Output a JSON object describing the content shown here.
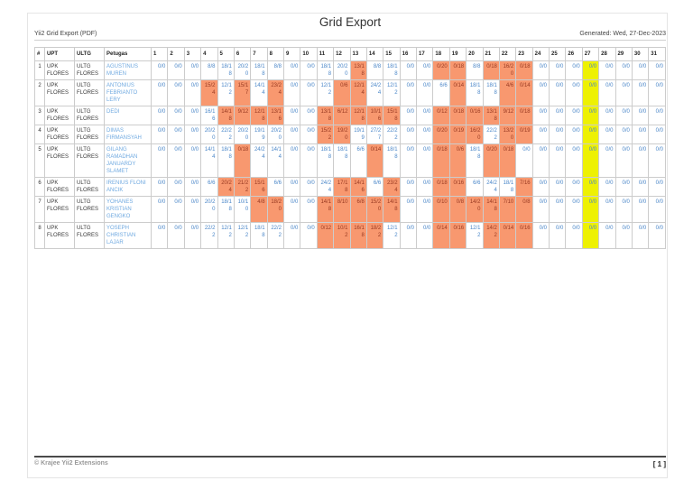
{
  "page": {
    "subtitle": "Yii2 Grid Export (PDF)",
    "title": "Grid Export",
    "generated": "Generated: Wed, 27-Dec-2023",
    "footer_left": "© Krajee Yii2 Extensions",
    "footer_right": "[ 1 ]"
  },
  "colors": {
    "orange_highlight": "#f8986f",
    "yellow_highlight": "#eef102",
    "value_text": "#4a86c8",
    "orange_cell_text": "#993a22",
    "link_text": "#6fa9e0",
    "border": "#cccccc"
  },
  "table": {
    "fixed_columns": [
      "#",
      "UPT",
      "ULTG",
      "Petugas"
    ],
    "day_columns": [
      "1",
      "2",
      "3",
      "4",
      "5",
      "6",
      "7",
      "8",
      "9",
      "10",
      "11",
      "12",
      "13",
      "14",
      "15",
      "16",
      "17",
      "18",
      "19",
      "20",
      "21",
      "22",
      "23",
      "24",
      "25",
      "26",
      "27",
      "28",
      "29",
      "30",
      "31"
    ],
    "yellow_day": 27,
    "rows": [
      {
        "num": "1",
        "upt": "UPK FLORES",
        "ultg": "ULTG FLORES",
        "petugas": "AGUSTINUS MUREN",
        "days": [
          "0/0",
          "0/0",
          "0/0",
          "8/8",
          "18/18",
          "20/20",
          "18/18",
          "8/8",
          "0/0",
          "0/0",
          "18/18",
          "20/20",
          "13/18",
          "8/8",
          "18/18",
          "0/0",
          "0/0",
          "0/20",
          "0/18",
          "8/8",
          "0/18",
          "16/20",
          "0/18",
          "0/0",
          "0/0",
          "0/0",
          "0/0",
          "0/0",
          "0/0",
          "0/0",
          "0/0"
        ],
        "orange": [
          13,
          18,
          19,
          21,
          22,
          23
        ]
      },
      {
        "num": "2",
        "upt": "UPK FLORES",
        "ultg": "ULTG FLORES",
        "petugas": "ANTONIUS FEBRIANTO LERY",
        "days": [
          "0/0",
          "0/0",
          "0/0",
          "15/24",
          "12/12",
          "15/17",
          "14/14",
          "23/24",
          "0/0",
          "0/0",
          "12/12",
          "0/6",
          "12/14",
          "24/24",
          "12/12",
          "0/0",
          "0/0",
          "6/6",
          "0/14",
          "18/18",
          "18/18",
          "4/6",
          "0/14",
          "0/0",
          "0/0",
          "0/0",
          "0/0",
          "0/0",
          "0/0",
          "0/0",
          "0/0"
        ],
        "orange": [
          4,
          6,
          8,
          12,
          13,
          19,
          22,
          23
        ]
      },
      {
        "num": "3",
        "upt": "UPK FLORES",
        "ultg": "ULTG FLORES",
        "petugas": "DEDI",
        "days": [
          "0/0",
          "0/0",
          "0/0",
          "16/16",
          "14/18",
          "9/12",
          "12/18",
          "13/16",
          "0/0",
          "0/0",
          "13/18",
          "6/12",
          "12/18",
          "10/16",
          "15/18",
          "0/0",
          "0/0",
          "0/12",
          "0/18",
          "0/16",
          "13/18",
          "9/12",
          "0/18",
          "0/0",
          "0/0",
          "0/0",
          "0/0",
          "0/0",
          "0/0",
          "0/0",
          "0/0"
        ],
        "orange": [
          5,
          6,
          7,
          8,
          11,
          12,
          13,
          14,
          15,
          18,
          19,
          20,
          21,
          22,
          23
        ]
      },
      {
        "num": "4",
        "upt": "UPK FLORES",
        "ultg": "ULTG FLORES",
        "petugas": "DIMAS FIRMANSYAH",
        "days": [
          "0/0",
          "0/0",
          "0/0",
          "20/20",
          "22/22",
          "20/20",
          "19/19",
          "20/20",
          "0/0",
          "0/0",
          "15/22",
          "19/20",
          "19/19",
          "27/27",
          "22/22",
          "0/0",
          "0/0",
          "0/20",
          "0/19",
          "16/20",
          "22/22",
          "13/20",
          "0/19",
          "0/0",
          "0/0",
          "0/0",
          "0/0",
          "0/0",
          "0/0",
          "0/0",
          "0/0"
        ],
        "orange": [
          11,
          12,
          18,
          19,
          20,
          22,
          23
        ]
      },
      {
        "num": "5",
        "upt": "UPK FLORES",
        "ultg": "ULTG FLORES",
        "petugas": "GILANG RAMADHAN JANUARDY SLAMET",
        "days": [
          "0/0",
          "0/0",
          "0/0",
          "14/14",
          "18/18",
          "0/18",
          "24/24",
          "14/14",
          "0/0",
          "0/0",
          "18/18",
          "18/18",
          "6/6",
          "0/14",
          "18/18",
          "0/0",
          "0/0",
          "0/18",
          "0/6",
          "18/18",
          "0/20",
          "0/18",
          "0/0",
          "0/0",
          "0/0",
          "0/0",
          "0/0",
          "0/0",
          "0/0",
          "0/0",
          "0/0"
        ],
        "orange": [
          6,
          14,
          18,
          19,
          21,
          22
        ]
      },
      {
        "num": "6",
        "upt": "UPK FLORES",
        "ultg": "ULTG FLORES",
        "petugas": "IRENIUS FLONI ANCIK",
        "days": [
          "0/0",
          "0/0",
          "0/0",
          "6/6",
          "20/24",
          "21/22",
          "15/16",
          "6/6",
          "0/0",
          "0/0",
          "24/24",
          "17/18",
          "14/16",
          "6/6",
          "23/24",
          "0/0",
          "0/0",
          "0/18",
          "0/16",
          "6/6",
          "24/24",
          "18/18",
          "7/16",
          "0/0",
          "0/0",
          "0/0",
          "0/0",
          "0/0",
          "0/0",
          "0/0",
          "0/0"
        ],
        "orange": [
          5,
          6,
          7,
          12,
          13,
          15,
          18,
          19,
          23
        ]
      },
      {
        "num": "7",
        "upt": "UPK FLORES",
        "ultg": "ULTG FLORES",
        "petugas": "YOHANES KRISTIAN GENGKO",
        "days": [
          "0/0",
          "0/0",
          "0/0",
          "20/20",
          "18/18",
          "10/10",
          "4/8",
          "18/20",
          "0/0",
          "0/0",
          "14/18",
          "8/10",
          "6/8",
          "15/20",
          "14/18",
          "0/0",
          "0/0",
          "0/10",
          "0/8",
          "14/20",
          "14/18",
          "7/10",
          "0/8",
          "0/0",
          "0/0",
          "0/0",
          "0/0",
          "0/0",
          "0/0",
          "0/0",
          "0/0"
        ],
        "orange": [
          7,
          8,
          11,
          12,
          13,
          14,
          15,
          18,
          19,
          20,
          21,
          22,
          23
        ]
      },
      {
        "num": "8",
        "upt": "UPK FLORES",
        "ultg": "ULTG FLORES",
        "petugas": "YOSEPH CHRISTIAN LAJAR",
        "days": [
          "0/0",
          "0/0",
          "0/0",
          "22/22",
          "12/12",
          "12/12",
          "18/18",
          "22/22",
          "0/0",
          "0/0",
          "0/12",
          "10/12",
          "16/18",
          "18/22",
          "12/12",
          "0/0",
          "0/0",
          "0/14",
          "0/16",
          "12/12",
          "14/22",
          "0/14",
          "0/16",
          "0/0",
          "0/0",
          "0/0",
          "0/0",
          "0/0",
          "0/0",
          "0/0",
          "0/0"
        ],
        "orange": [
          11,
          12,
          13,
          14,
          18,
          19,
          21,
          22,
          23
        ]
      }
    ]
  }
}
